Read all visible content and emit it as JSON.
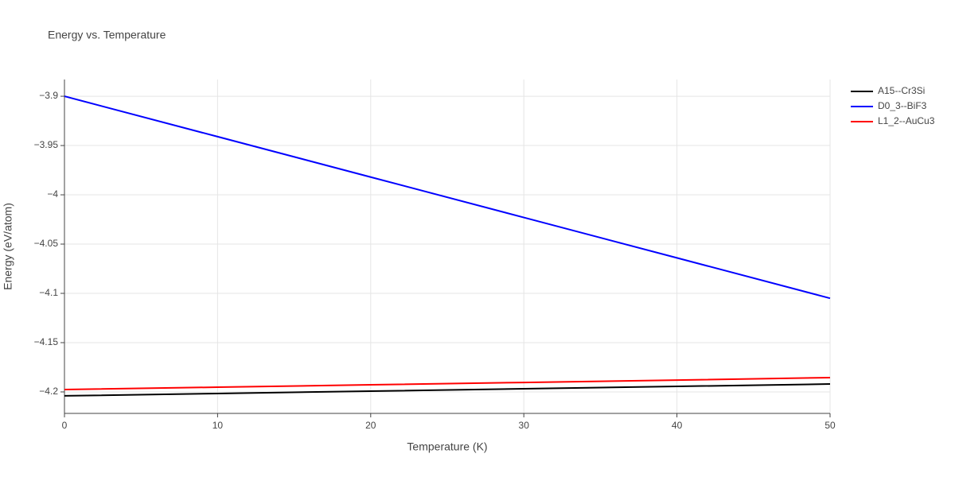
{
  "chart_data": {
    "type": "line",
    "title": "Energy vs. Temperature",
    "x_label": "Temperature (K)",
    "y_label": "Energy (eV/atom)",
    "x": [
      0,
      10,
      20,
      30,
      40,
      50
    ],
    "series": [
      {
        "name": "A15--Cr3Si",
        "color": "#000000",
        "values": [
          -4.204,
          -4.2016,
          -4.1992,
          -4.1968,
          -4.1944,
          -4.192
        ]
      },
      {
        "name": "D0_3--BiF3",
        "color": "#0000ff",
        "values": [
          -3.9,
          -3.941,
          -3.982,
          -4.023,
          -4.064,
          -4.105
        ]
      },
      {
        "name": "L1_2--AuCu3",
        "color": "#ff0000",
        "values": [
          -4.1976,
          -4.1952,
          -4.1928,
          -4.1904,
          -4.188,
          -4.1855
        ]
      }
    ],
    "xlim": [
      0,
      50
    ],
    "xticks": [
      0,
      10,
      20,
      30,
      40,
      50
    ],
    "ylim": [
      -4.2218,
      -3.883
    ],
    "yticks": [
      {
        "value": -4.2,
        "label": "−4.2"
      },
      {
        "value": -4.15,
        "label": "−4.15"
      },
      {
        "value": -4.1,
        "label": "−4.1"
      },
      {
        "value": -4.05,
        "label": "−4.05"
      },
      {
        "value": -4,
        "label": "−4"
      },
      {
        "value": -3.95,
        "label": "−3.95"
      },
      {
        "value": -3.9,
        "label": "−3.9"
      }
    ],
    "grid": true,
    "legend": "right"
  }
}
